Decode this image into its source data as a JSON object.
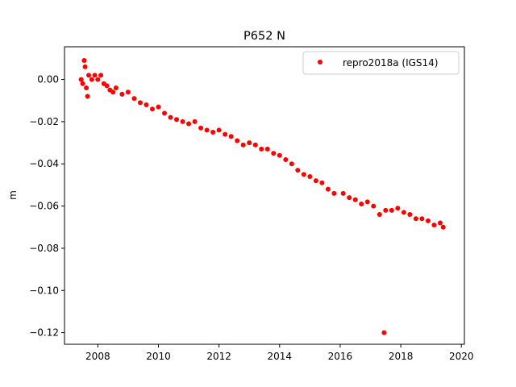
{
  "chart_data": {
    "type": "scatter",
    "title": "P652 N",
    "xlabel": "",
    "ylabel": "m",
    "xlim": [
      2006.9,
      2020.1
    ],
    "ylim": [
      -0.1255,
      0.0155
    ],
    "xticks": [
      2008,
      2010,
      2012,
      2014,
      2016,
      2018,
      2020
    ],
    "xtick_labels": [
      "2008",
      "2010",
      "2012",
      "2014",
      "2016",
      "2018",
      "2020"
    ],
    "yticks": [
      0.0,
      -0.02,
      -0.04,
      -0.06,
      -0.08,
      -0.1,
      -0.12
    ],
    "ytick_labels": [
      "0.00",
      "−0.02",
      "−0.04",
      "−0.06",
      "−0.08",
      "−0.10",
      "−0.12"
    ],
    "grid": false,
    "legend": "top-right",
    "series": [
      {
        "name": "repro2018a (IGS14)",
        "color": "#ff0000",
        "marker": "circle",
        "x": [
          2007.45,
          2007.5,
          2007.55,
          2007.58,
          2007.62,
          2007.66,
          2007.7,
          2007.8,
          2007.9,
          2008.0,
          2008.1,
          2008.2,
          2008.3,
          2008.4,
          2008.5,
          2008.6,
          2008.8,
          2009.0,
          2009.2,
          2009.4,
          2009.6,
          2009.8,
          2010.0,
          2010.2,
          2010.4,
          2010.6,
          2010.8,
          2011.0,
          2011.2,
          2011.4,
          2011.6,
          2011.8,
          2012.0,
          2012.2,
          2012.4,
          2012.6,
          2012.8,
          2013.0,
          2013.2,
          2013.4,
          2013.6,
          2013.8,
          2014.0,
          2014.2,
          2014.4,
          2014.6,
          2014.8,
          2015.0,
          2015.2,
          2015.4,
          2015.6,
          2015.8,
          2016.1,
          2016.3,
          2016.5,
          2016.7,
          2016.9,
          2017.1,
          2017.3,
          2017.5,
          2017.7,
          2017.9,
          2018.1,
          2018.3,
          2018.5,
          2018.7,
          2018.9,
          2019.1,
          2019.3,
          2019.4,
          2017.45
        ],
        "y": [
          0.0,
          -0.002,
          0.009,
          0.006,
          -0.004,
          -0.008,
          0.002,
          0.0,
          0.002,
          0.0,
          0.002,
          -0.002,
          -0.003,
          -0.005,
          -0.006,
          -0.004,
          -0.007,
          -0.006,
          -0.009,
          -0.011,
          -0.012,
          -0.014,
          -0.013,
          -0.016,
          -0.018,
          -0.019,
          -0.02,
          -0.021,
          -0.02,
          -0.023,
          -0.024,
          -0.025,
          -0.024,
          -0.026,
          -0.027,
          -0.029,
          -0.031,
          -0.03,
          -0.031,
          -0.033,
          -0.033,
          -0.035,
          -0.036,
          -0.038,
          -0.04,
          -0.043,
          -0.045,
          -0.046,
          -0.048,
          -0.049,
          -0.052,
          -0.054,
          -0.054,
          -0.056,
          -0.057,
          -0.059,
          -0.058,
          -0.06,
          -0.064,
          -0.062,
          -0.062,
          -0.061,
          -0.063,
          -0.064,
          -0.066,
          -0.066,
          -0.067,
          -0.069,
          -0.068,
          -0.07,
          -0.12
        ]
      }
    ]
  }
}
